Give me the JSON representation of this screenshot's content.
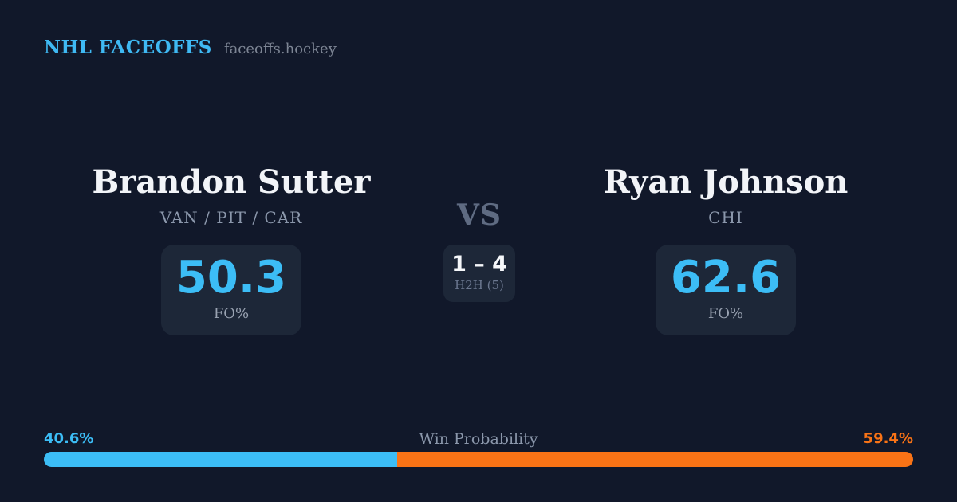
{
  "brand": {
    "title": "NHL FACEOFFS",
    "domain": "faceoffs.hockey"
  },
  "players": {
    "left": {
      "name": "Brandon Sutter",
      "teams": "VAN / PIT / CAR",
      "stat_value": "50.3",
      "stat_label": "FO%"
    },
    "right": {
      "name": "Ryan Johnson",
      "teams": "CHI",
      "stat_value": "62.6",
      "stat_label": "FO%"
    }
  },
  "versus": {
    "label": "VS",
    "h2h_score": "1 – 4",
    "h2h_label": "H2H (5)"
  },
  "win_probability": {
    "title": "Win Probability",
    "left_pct_label": "40.6%",
    "right_pct_label": "59.4%",
    "left_value": 40.6,
    "right_value": 59.4
  },
  "colors": {
    "background": "#11182a",
    "card": "#1d2738",
    "accent_blue": "#3cbdf6",
    "accent_orange": "#f97316"
  }
}
